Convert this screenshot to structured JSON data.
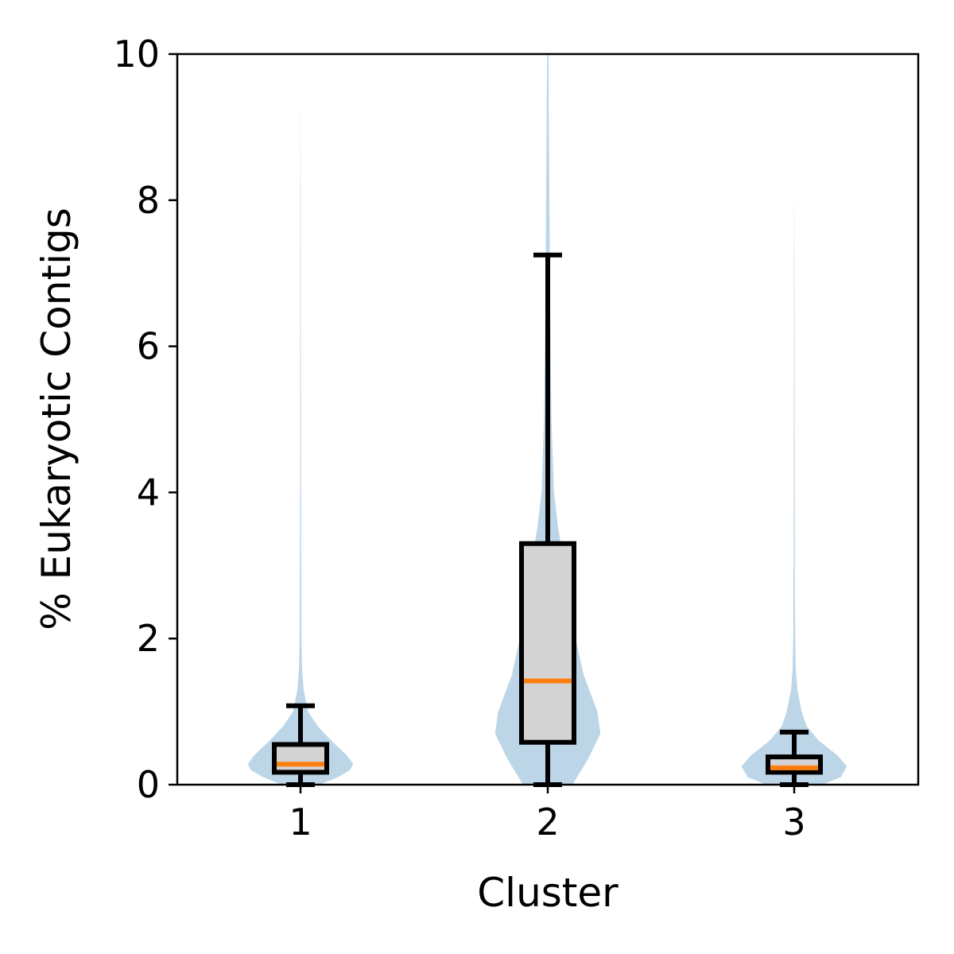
{
  "chart_data": {
    "type": "violin+box",
    "xlabel": "Cluster",
    "ylabel": "% Eukaryotic Contigs",
    "categories": [
      "1",
      "2",
      "3"
    ],
    "ylim": [
      0,
      10
    ],
    "yticks": [
      "0",
      "2",
      "4",
      "6",
      "8",
      "10"
    ],
    "grid": false,
    "colors": {
      "violin": "#bcd6e8",
      "box_fill": "#d3d3d3",
      "box_edge": "#000000",
      "median": "#ff7f0e"
    },
    "series": [
      {
        "category": "1",
        "box": {
          "whisker_low": 0.0,
          "q1": 0.17,
          "median": 0.28,
          "q3": 0.55,
          "whisker_high": 1.08
        },
        "violin": {
          "max": 9.5,
          "profile": [
            [
              0,
              0.3
            ],
            [
              0.1,
              0.6
            ],
            [
              0.2,
              0.8
            ],
            [
              0.28,
              0.85
            ],
            [
              0.4,
              0.75
            ],
            [
              0.6,
              0.5
            ],
            [
              0.8,
              0.28
            ],
            [
              1.0,
              0.12
            ],
            [
              1.3,
              0.05
            ],
            [
              1.6,
              0.025
            ],
            [
              2.0,
              0.014
            ],
            [
              3.0,
              0.01
            ],
            [
              5.0,
              0.007
            ],
            [
              8.0,
              0.004
            ],
            [
              9.5,
              0.0
            ]
          ]
        }
      },
      {
        "category": "2",
        "box": {
          "whisker_low": 0.0,
          "q1": 0.58,
          "median": 1.42,
          "q3": 3.3,
          "whisker_high": 7.25
        },
        "violin": {
          "max": 10.0,
          "profile": [
            [
              0,
              0.4
            ],
            [
              0.35,
              0.65
            ],
            [
              0.7,
              0.85
            ],
            [
              1.0,
              0.8
            ],
            [
              1.5,
              0.58
            ],
            [
              2.0,
              0.45
            ],
            [
              2.5,
              0.35
            ],
            [
              3.0,
              0.27
            ],
            [
              3.5,
              0.17
            ],
            [
              4.0,
              0.1
            ],
            [
              5.0,
              0.06
            ],
            [
              6.0,
              0.045
            ],
            [
              7.0,
              0.035
            ],
            [
              8.0,
              0.027
            ],
            [
              9.0,
              0.018
            ],
            [
              10.0,
              0.01
            ]
          ]
        }
      },
      {
        "category": "3",
        "box": {
          "whisker_low": 0.0,
          "q1": 0.17,
          "median": 0.23,
          "q3": 0.38,
          "whisker_high": 0.72
        },
        "violin": {
          "max": 8.2,
          "profile": [
            [
              0,
              0.45
            ],
            [
              0.1,
              0.75
            ],
            [
              0.25,
              0.85
            ],
            [
              0.4,
              0.7
            ],
            [
              0.6,
              0.4
            ],
            [
              0.8,
              0.2
            ],
            [
              1.0,
              0.12
            ],
            [
              1.3,
              0.05
            ],
            [
              1.6,
              0.025
            ],
            [
              2.0,
              0.015
            ],
            [
              3.0,
              0.01
            ],
            [
              5.0,
              0.007
            ],
            [
              7.0,
              0.004
            ],
            [
              8.2,
              0.0
            ]
          ]
        }
      }
    ]
  }
}
